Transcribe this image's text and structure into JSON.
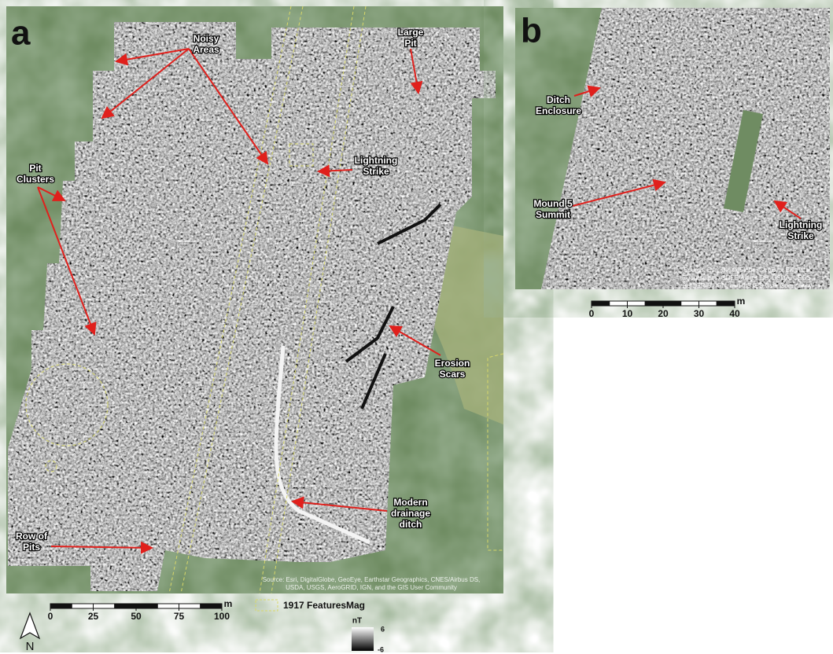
{
  "panel_a": {
    "letter": "a",
    "annotations": [
      {
        "lines": [
          "Noisy",
          "Areas"
        ]
      },
      {
        "lines": [
          "Large",
          "Pit"
        ]
      },
      {
        "lines": [
          "Lightning",
          "Strike"
        ]
      },
      {
        "lines": [
          "Pit",
          "Clusters"
        ]
      },
      {
        "lines": [
          "Erosion",
          "Scars"
        ]
      },
      {
        "lines": [
          "Modern",
          "drainage",
          "ditch"
        ]
      },
      {
        "lines": [
          "Row of",
          "Pits"
        ]
      }
    ],
    "credit": [
      "Source: Esri, DigitalGlobe, GeoEye, Earthstar Geographics, CNES/Airbus DS,",
      "USDA, USGS, AeroGRID, IGN, and the GIS User Community"
    ],
    "scale": {
      "ticks": [
        0,
        25,
        50,
        75,
        100
      ],
      "unit": "m"
    },
    "north": "N"
  },
  "legend": {
    "features": "1917 Features",
    "mag_title": "Mag",
    "mag_unit": "nT",
    "mag_max": 6,
    "mag_min": -6
  },
  "panel_b": {
    "letter": "b",
    "annotations": [
      {
        "lines": [
          "Ditch",
          "Enclosure"
        ]
      },
      {
        "lines": [
          "Mound 5",
          "Summit"
        ]
      },
      {
        "lines": [
          "Lightning",
          "Strike"
        ]
      }
    ],
    "credit": [
      "Source: Esri, DigitalGlobe, GeoEye, Earthstar",
      "Geographics, CNES/Airbus DS, USDA, USGS,",
      "AeroGRID, IGN, and the GIS User Community"
    ],
    "scale": {
      "ticks": [
        0,
        10,
        20,
        30,
        40
      ],
      "unit": "m"
    }
  }
}
